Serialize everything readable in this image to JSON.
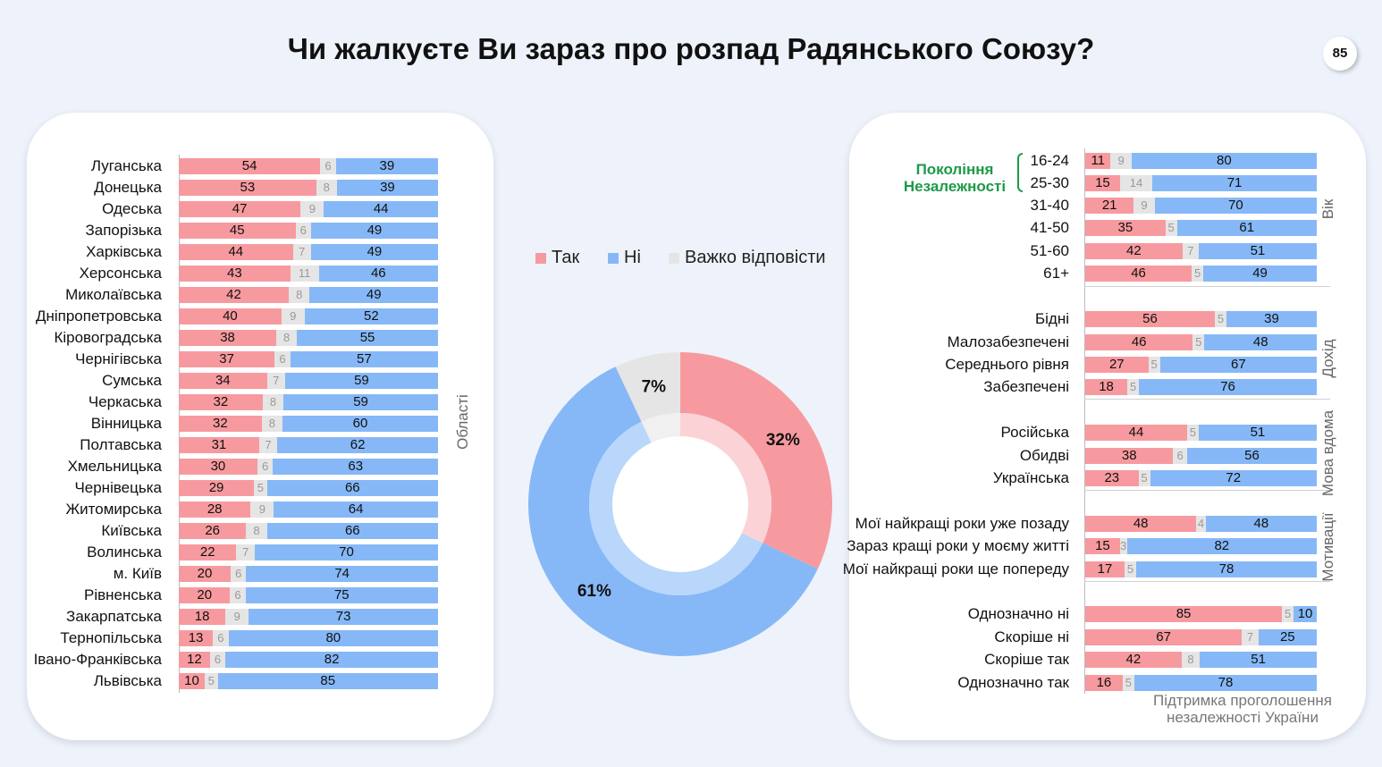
{
  "title": "Чи жалкуєте Ви зараз про розпад Радянського Союзу?",
  "page_number": "85",
  "colors": {
    "yes": "#f79a9f",
    "no": "#86b8f7",
    "dk": "#e5e5e5",
    "green": "#1b9a47"
  },
  "legend": [
    {
      "label": "Так",
      "color": "#f79a9f"
    },
    {
      "label": "Ні",
      "color": "#86b8f7"
    },
    {
      "label": "Важко відповісти",
      "color": "#e5e5e5"
    }
  ],
  "chart_data": [
    {
      "type": "bar",
      "stacked": true,
      "orientation": "horizontal",
      "group_label": "Області",
      "categories": [
        "Луганська",
        "Донецька",
        "Одеська",
        "Запорізька",
        "Харківська",
        "Херсонська",
        "Миколаївська",
        "Дніпропетровська",
        "Кіровоградська",
        "Чернігівська",
        "Сумська",
        "Черкаська",
        "Вінницька",
        "Полтавська",
        "Хмельницька",
        "Чернівецька",
        "Житомирська",
        "Київська",
        "Волинська",
        "м. Київ",
        "Рівненська",
        "Закарпатська",
        "Тернопільська",
        "Івано-Франківська",
        "Львівська"
      ],
      "series": [
        {
          "name": "Так",
          "values": [
            54,
            53,
            47,
            45,
            44,
            43,
            42,
            40,
            38,
            37,
            34,
            32,
            32,
            31,
            30,
            29,
            28,
            26,
            22,
            20,
            20,
            18,
            13,
            12,
            10
          ]
        },
        {
          "name": "Важко відповісти",
          "values": [
            6,
            8,
            9,
            6,
            7,
            11,
            8,
            9,
            8,
            6,
            7,
            8,
            8,
            7,
            6,
            5,
            9,
            8,
            7,
            6,
            6,
            9,
            6,
            6,
            5
          ]
        },
        {
          "name": "Ні",
          "values": [
            39,
            39,
            44,
            49,
            49,
            46,
            49,
            52,
            55,
            57,
            59,
            59,
            60,
            62,
            63,
            66,
            64,
            66,
            70,
            74,
            75,
            73,
            80,
            82,
            85
          ]
        }
      ]
    },
    {
      "type": "pie",
      "donut": true,
      "labels": [
        "Так",
        "Ні",
        "Важко відповісти"
      ],
      "values": [
        32,
        61,
        7
      ],
      "value_labels": [
        "32%",
        "61%",
        "7%"
      ]
    },
    {
      "type": "bar",
      "stacked": true,
      "orientation": "horizontal",
      "groups": [
        {
          "group_label": "Вік",
          "side_label": "Покоління Незалежності",
          "categories": [
            "16-24",
            "25-30",
            "31-40",
            "41-50",
            "51-60",
            "61+"
          ],
          "series": [
            {
              "name": "Так",
              "values": [
                11,
                15,
                21,
                35,
                42,
                46
              ]
            },
            {
              "name": "Важко відповісти",
              "values": [
                9,
                14,
                9,
                5,
                7,
                5
              ]
            },
            {
              "name": "Ні",
              "values": [
                80,
                71,
                70,
                61,
                51,
                49
              ]
            }
          ]
        },
        {
          "group_label": "Дохід",
          "categories": [
            "Бідні",
            "Малозабезпечені",
            "Середнього рівня",
            "Забезпечені"
          ],
          "series": [
            {
              "name": "Так",
              "values": [
                56,
                46,
                27,
                18
              ]
            },
            {
              "name": "Важко відповісти",
              "values": [
                5,
                5,
                5,
                5
              ]
            },
            {
              "name": "Ні",
              "values": [
                39,
                48,
                67,
                76
              ]
            }
          ]
        },
        {
          "group_label": "Мова вдома",
          "categories": [
            "Російська",
            "Обидві",
            "Українська"
          ],
          "series": [
            {
              "name": "Так",
              "values": [
                44,
                38,
                23
              ]
            },
            {
              "name": "Важко відповісти",
              "values": [
                5,
                6,
                5
              ]
            },
            {
              "name": "Ні",
              "values": [
                51,
                56,
                72
              ]
            }
          ]
        },
        {
          "group_label": "Мотивації",
          "categories": [
            "Мої найкращі роки уже позаду",
            "Зараз кращі роки у моєму житті",
            "Мої найкращі роки ще попереду"
          ],
          "series": [
            {
              "name": "Так",
              "values": [
                48,
                15,
                17
              ]
            },
            {
              "name": "Важко відповісти",
              "values": [
                4,
                3,
                5
              ]
            },
            {
              "name": "Ні",
              "values": [
                48,
                82,
                78
              ]
            }
          ]
        },
        {
          "group_label": "Підтримка проголошення незалежності України",
          "categories": [
            "Однозначно ні",
            "Скоріше ні",
            "Скоріше так",
            "Однозначно так"
          ],
          "series": [
            {
              "name": "Так",
              "values": [
                85,
                67,
                42,
                16
              ]
            },
            {
              "name": "Важко відповісти",
              "values": [
                5,
                7,
                8,
                5
              ]
            },
            {
              "name": "Ні",
              "values": [
                10,
                25,
                51,
                78
              ]
            }
          ]
        }
      ]
    }
  ]
}
